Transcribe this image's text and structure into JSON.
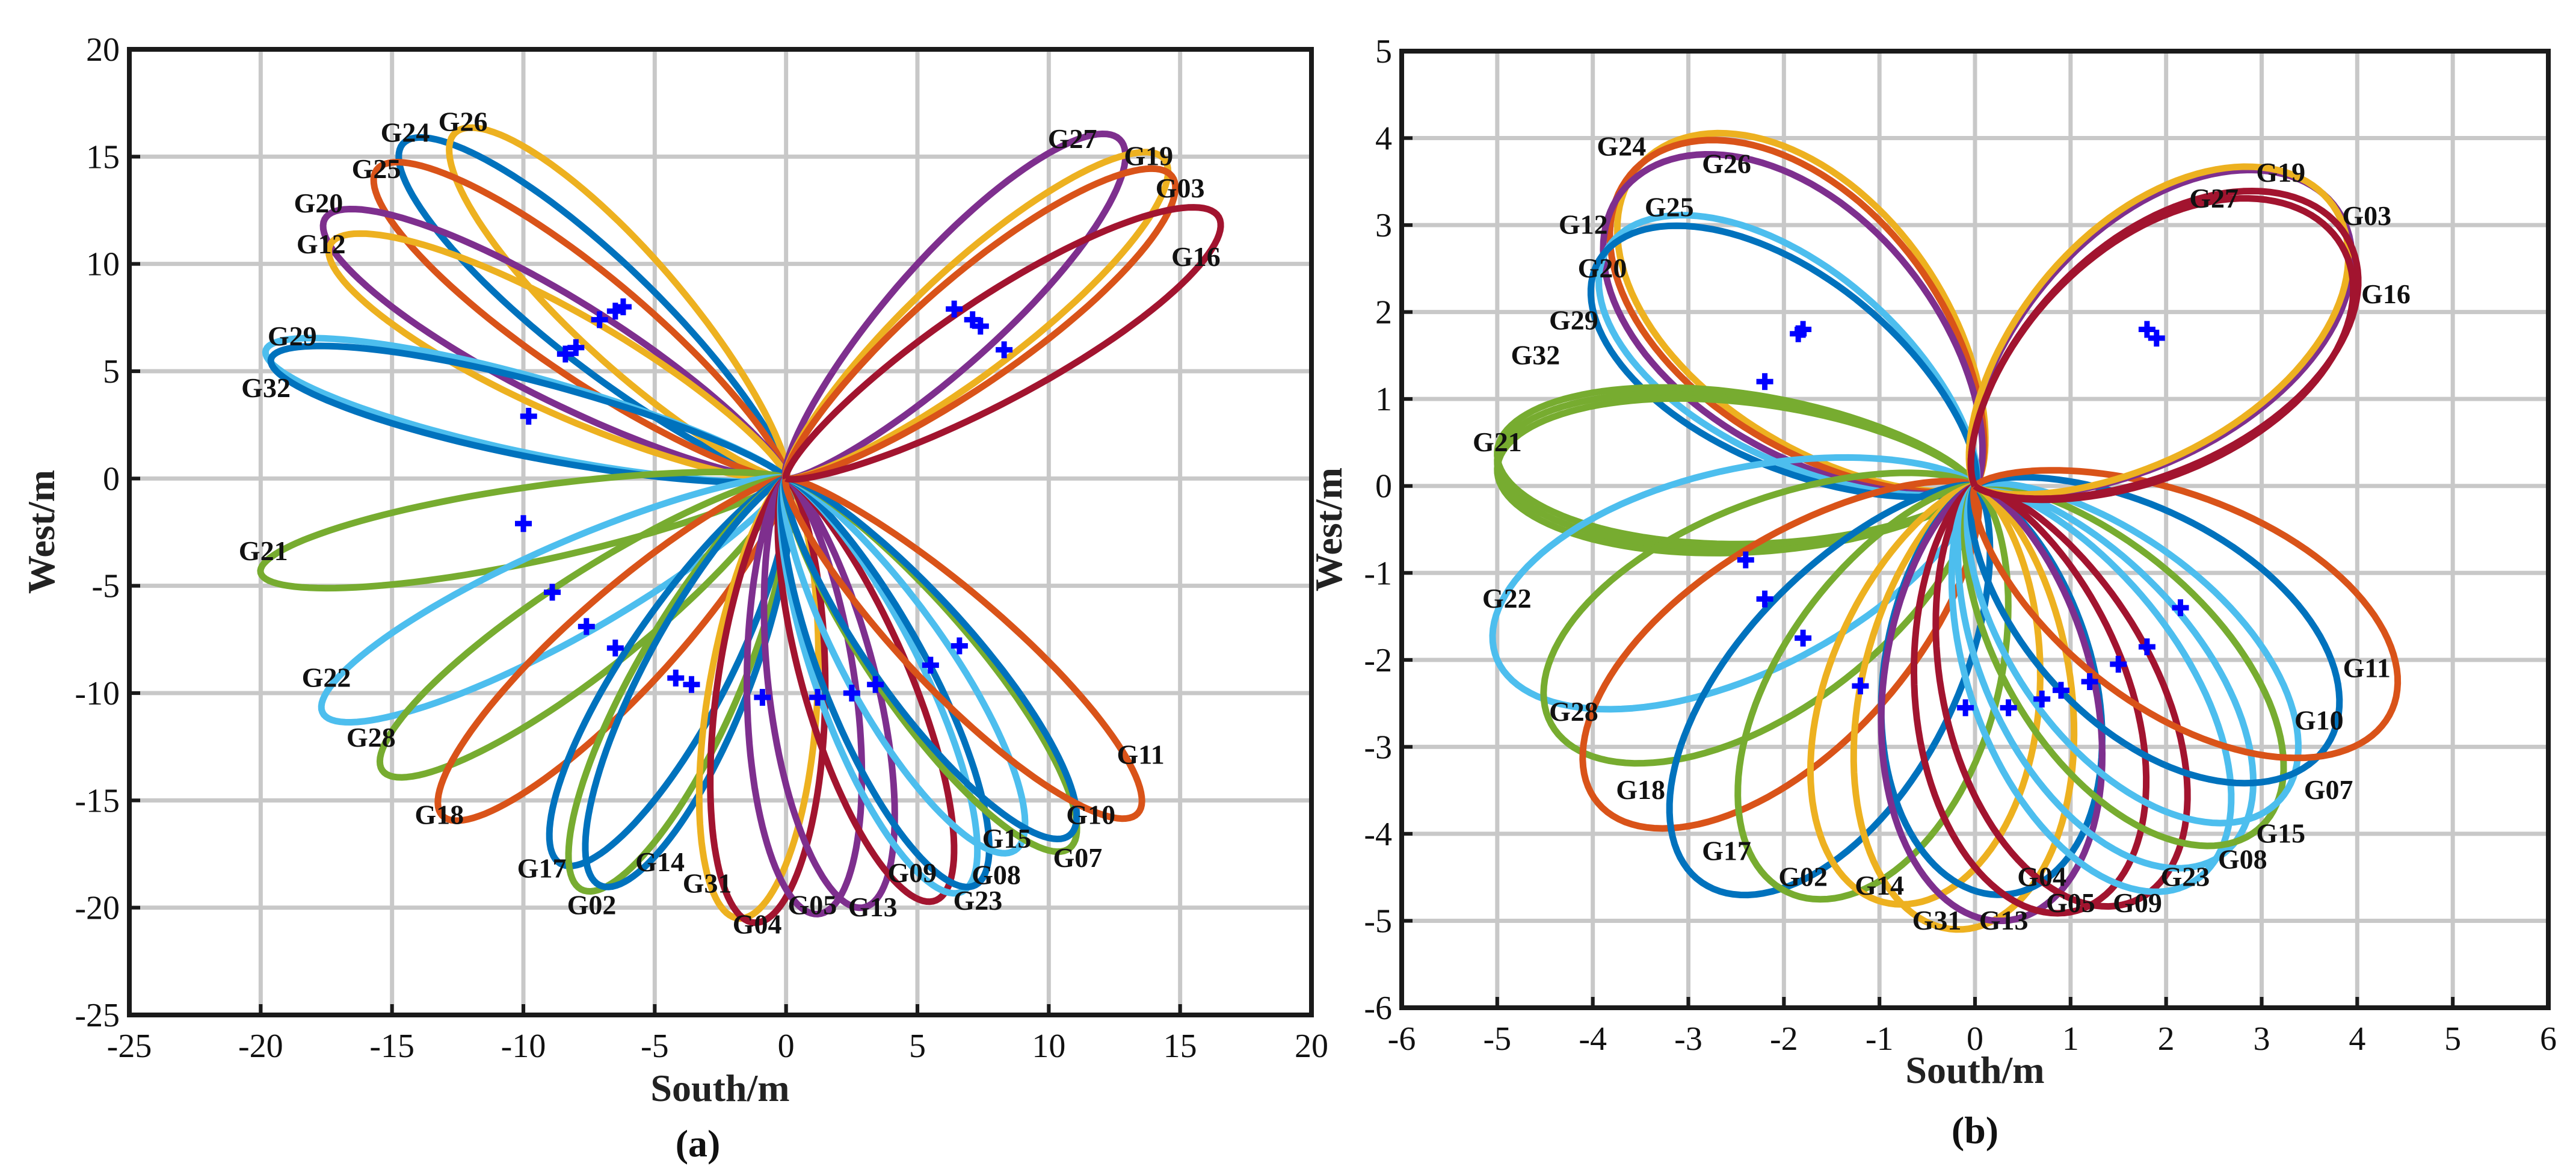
{
  "colors": {
    "C_blue": "#0072BD",
    "C_orange": "#D95319",
    "C_yellow": "#EDB120",
    "C_purple": "#7E2F8E",
    "C_green": "#77AC30",
    "C_cyan": "#4DBEEE",
    "C_red": "#A2142F",
    "marker": "#0000FF"
  },
  "chart_data": [
    {
      "type": "line",
      "subtitle": "(a)",
      "xlabel": "South/m",
      "ylabel": "West/m",
      "xlim": [
        -25,
        20
      ],
      "ylim": [
        -25,
        20
      ],
      "xticks": [
        -25,
        -20,
        -15,
        -10,
        -5,
        0,
        5,
        10,
        15,
        20
      ],
      "yticks": [
        -25,
        -20,
        -15,
        -10,
        -5,
        0,
        5,
        10,
        15,
        20
      ],
      "grid": true,
      "series": [
        {
          "name": "G24",
          "color": "C_blue",
          "tip": [
            -14.5,
            15.7
          ],
          "width": 2.6,
          "label": "G24",
          "label_at": [
            -14.5,
            15.7
          ]
        },
        {
          "name": "G26",
          "color": "C_yellow",
          "tip": [
            -12.5,
            16.2
          ],
          "width": 2.6,
          "label": "G26",
          "label_at": [
            -12.3,
            16.2
          ]
        },
        {
          "name": "G25",
          "color": "C_orange",
          "tip": [
            -15.5,
            14.5
          ],
          "width": 2.6,
          "label": "G25",
          "label_at": [
            -15.6,
            14.0
          ]
        },
        {
          "name": "G20",
          "color": "C_purple",
          "tip": [
            -17.5,
            12.2
          ],
          "width": 2.6,
          "label": "G20",
          "label_at": [
            -17.8,
            12.4
          ]
        },
        {
          "name": "G12",
          "color": "C_yellow",
          "tip": [
            -17.3,
            11.0
          ],
          "width": 2.6,
          "label": "G12",
          "label_at": [
            -17.7,
            10.5
          ]
        },
        {
          "name": "G29",
          "color": "C_cyan",
          "tip": [
            -19.8,
            6.0
          ],
          "width": 2.0,
          "label": "G29",
          "label_at": [
            -18.8,
            6.2
          ]
        },
        {
          "name": "G32",
          "color": "C_blue",
          "tip": [
            -19.6,
            5.6
          ],
          "width": 2.0,
          "label": "G32",
          "label_at": [
            -19.8,
            3.8
          ]
        },
        {
          "name": "G21",
          "color": "C_green",
          "tip": [
            -20.0,
            -4.4
          ],
          "width": 2.0,
          "label": "G21",
          "label_at": [
            -19.9,
            -3.8
          ]
        },
        {
          "name": "G22",
          "color": "C_cyan",
          "tip": [
            -17.6,
            -11.0
          ],
          "width": 2.4,
          "label": "G22",
          "label_at": [
            -17.5,
            -9.7
          ]
        },
        {
          "name": "G28",
          "color": "C_green",
          "tip": [
            -15.3,
            -13.7
          ],
          "width": 2.4,
          "label": "G28",
          "label_at": [
            -15.8,
            -12.5
          ]
        },
        {
          "name": "G18",
          "color": "C_orange",
          "tip": [
            -13.0,
            -15.8
          ],
          "width": 2.4,
          "label": "G18",
          "label_at": [
            -13.2,
            -16.1
          ]
        },
        {
          "name": "G17",
          "color": "C_blue",
          "tip": [
            -8.5,
            -18.0
          ],
          "width": 2.4,
          "label": "G17",
          "label_at": [
            -9.3,
            -18.6
          ]
        },
        {
          "name": "G02",
          "color": "C_green",
          "tip": [
            -7.7,
            -19.2
          ],
          "width": 2.4,
          "label": "G02",
          "label_at": [
            -7.4,
            -20.3
          ]
        },
        {
          "name": "G14",
          "color": "C_blue",
          "tip": [
            -7.0,
            -19.0
          ],
          "width": 2.4,
          "label": "G14",
          "label_at": [
            -4.8,
            -18.3
          ]
        },
        {
          "name": "G31",
          "color": "C_yellow",
          "tip": [
            -1.8,
            -20.5
          ],
          "width": 2.4,
          "label": "G31",
          "label_at": [
            -3.0,
            -19.3
          ]
        },
        {
          "name": "G04",
          "color": "C_red",
          "tip": [
            -1.2,
            -20.7
          ],
          "width": 2.4,
          "label": "G04",
          "label_at": [
            -1.1,
            -21.2
          ]
        },
        {
          "name": "G05",
          "color": "C_purple",
          "tip": [
            1.2,
            -20.3
          ],
          "width": 2.4,
          "label": "G05",
          "label_at": [
            1.0,
            -20.3
          ]
        },
        {
          "name": "G13",
          "color": "C_purple",
          "tip": [
            2.9,
            -20.0
          ],
          "width": 2.4,
          "label": "G13",
          "label_at": [
            3.3,
            -20.4
          ]
        },
        {
          "name": "G09",
          "color": "C_red",
          "tip": [
            5.6,
            -19.7
          ],
          "width": 2.4,
          "label": "G09",
          "label_at": [
            4.8,
            -18.8
          ]
        },
        {
          "name": "G23",
          "color": "C_cyan",
          "tip": [
            6.6,
            -19.3
          ],
          "width": 2.4,
          "label": "G23",
          "label_at": [
            7.3,
            -20.1
          ]
        },
        {
          "name": "G08",
          "color": "C_blue",
          "tip": [
            7.1,
            -19.0
          ],
          "width": 2.4,
          "label": "G08",
          "label_at": [
            8.0,
            -18.9
          ]
        },
        {
          "name": "G15",
          "color": "C_cyan",
          "tip": [
            8.6,
            -17.4
          ],
          "width": 2.4,
          "label": "G15",
          "label_at": [
            8.4,
            -17.2
          ]
        },
        {
          "name": "G07",
          "color": "C_green",
          "tip": [
            10.7,
            -17.3
          ],
          "width": 2.4,
          "label": "G07",
          "label_at": [
            11.1,
            -18.1
          ]
        },
        {
          "name": "G10",
          "color": "C_blue",
          "tip": [
            10.7,
            -16.7
          ],
          "width": 2.4,
          "label": "G10",
          "label_at": [
            11.6,
            -16.1
          ]
        },
        {
          "name": "G11",
          "color": "C_orange",
          "tip": [
            13.3,
            -15.7
          ],
          "width": 2.4,
          "label": "G11",
          "label_at": [
            13.5,
            -13.3
          ]
        },
        {
          "name": "G27",
          "color": "C_purple",
          "tip": [
            12.6,
            15.9
          ],
          "width": 2.6,
          "label": "G27",
          "label_at": [
            10.9,
            15.4
          ]
        },
        {
          "name": "G19",
          "color": "C_yellow",
          "tip": [
            14.3,
            15.0
          ],
          "width": 2.6,
          "label": "G19",
          "label_at": [
            13.8,
            14.6
          ]
        },
        {
          "name": "G03",
          "color": "C_orange",
          "tip": [
            14.6,
            14.2
          ],
          "width": 2.6,
          "label": "G03",
          "label_at": [
            15.0,
            13.1
          ]
        },
        {
          "name": "G16",
          "color": "C_red",
          "tip": [
            16.4,
            12.3
          ],
          "width": 2.6,
          "label": "G16",
          "label_at": [
            15.6,
            9.9
          ]
        }
      ],
      "markers": [
        [
          -9.8,
          2.9
        ],
        [
          -8.0,
          6.1
        ],
        [
          -8.4,
          5.8
        ],
        [
          -7.1,
          7.4
        ],
        [
          -6.5,
          7.8
        ],
        [
          -6.2,
          8.0
        ],
        [
          6.4,
          7.9
        ],
        [
          7.1,
          7.4
        ],
        [
          7.4,
          7.1
        ],
        [
          8.3,
          6.0
        ],
        [
          -10.0,
          -2.1
        ],
        [
          -8.9,
          -5.3
        ],
        [
          -7.6,
          -6.9
        ],
        [
          -6.5,
          -7.9
        ],
        [
          -4.2,
          -9.3
        ],
        [
          -3.6,
          -9.6
        ],
        [
          -0.9,
          -10.2
        ],
        [
          1.2,
          -10.2
        ],
        [
          2.5,
          -10.0
        ],
        [
          3.4,
          -9.6
        ],
        [
          5.5,
          -8.7
        ],
        [
          6.6,
          -7.8
        ]
      ]
    },
    {
      "type": "line",
      "subtitle": "(b)",
      "xlabel": "South/m",
      "ylabel": "West/m",
      "xlim": [
        -6,
        6
      ],
      "ylim": [
        -6,
        5
      ],
      "xticks": [
        -6,
        -5,
        -4,
        -3,
        -2,
        -1,
        0,
        1,
        2,
        3,
        4,
        5,
        6
      ],
      "yticks": [
        -6,
        -5,
        -4,
        -3,
        -2,
        -1,
        0,
        1,
        2,
        3,
        4,
        5
      ],
      "grid": true,
      "series": [
        {
          "name": "G24",
          "color": "C_yellow",
          "tip": [
            -3.4,
            3.8
          ],
          "width": 1.55,
          "label": "G24",
          "label_at": [
            -3.7,
            3.8
          ]
        },
        {
          "name": "G26",
          "color": "C_orange",
          "tip": [
            -3.5,
            3.7
          ],
          "width": 1.55,
          "label": "G26",
          "label_at": [
            -2.6,
            3.6
          ]
        },
        {
          "name": "G25",
          "color": "C_purple",
          "tip": [
            -3.6,
            3.5
          ],
          "width": 1.55,
          "label": "G25",
          "label_at": [
            -3.2,
            3.1
          ]
        },
        {
          "name": "G12",
          "color": "C_cyan",
          "tip": [
            -3.8,
            2.8
          ],
          "width": 1.25,
          "label": "G12",
          "label_at": [
            -4.1,
            2.9
          ]
        },
        {
          "name": "G20",
          "color": "C_blue",
          "tip": [
            -3.9,
            2.65
          ],
          "width": 1.25,
          "label": "G20",
          "label_at": [
            -3.9,
            2.4
          ]
        },
        {
          "name": "G29",
          "color": "C_green",
          "tip": [
            -5.0,
            0.3
          ],
          "width": 1.0,
          "label": "G29",
          "label_at": [
            -4.2,
            1.8
          ]
        },
        {
          "name": "G32",
          "color": "C_green",
          "tip": [
            -5.0,
            0.4
          ],
          "width": 1.0,
          "label": "G32",
          "label_at": [
            -4.6,
            1.4
          ]
        },
        {
          "name": "G21",
          "color": "C_green",
          "tip": [
            -5.0,
            0.2
          ],
          "width": 1.0,
          "label": "G21",
          "label_at": [
            -5.0,
            0.4
          ]
        },
        {
          "name": "G22",
          "color": "C_cyan",
          "tip": [
            -5.0,
            -2.0
          ],
          "width": 1.35,
          "label": "G22",
          "label_at": [
            -4.9,
            -1.4
          ]
        },
        {
          "name": "G28",
          "color": "C_green",
          "tip": [
            -4.4,
            -2.8
          ],
          "width": 1.35,
          "label": "G28",
          "label_at": [
            -4.2,
            -2.7
          ]
        },
        {
          "name": "G18",
          "color": "C_orange",
          "tip": [
            -3.9,
            -3.7
          ],
          "width": 1.35,
          "label": "G18",
          "label_at": [
            -3.5,
            -3.6
          ]
        },
        {
          "name": "G17",
          "color": "C_blue",
          "tip": [
            -2.8,
            -4.6
          ],
          "width": 1.35,
          "label": "G17",
          "label_at": [
            -2.6,
            -4.3
          ]
        },
        {
          "name": "G02",
          "color": "C_green",
          "tip": [
            -1.9,
            -4.7
          ],
          "width": 1.35,
          "label": "G02",
          "label_at": [
            -1.8,
            -4.6
          ]
        },
        {
          "name": "G14",
          "color": "C_yellow",
          "tip": [
            -0.9,
            -4.8
          ],
          "width": 1.3,
          "label": "G14",
          "label_at": [
            -1.0,
            -4.7
          ]
        },
        {
          "name": "G31",
          "color": "C_yellow",
          "tip": [
            -0.2,
            -5.1
          ],
          "width": 1.3,
          "label": "G31",
          "label_at": [
            -0.4,
            -5.1
          ]
        },
        {
          "name": "G04",
          "color": "C_blue",
          "tip": [
            0.3,
            -4.7
          ],
          "width": 1.3,
          "label": "G04",
          "label_at": [
            0.7,
            -4.6
          ]
        },
        {
          "name": "G13",
          "color": "C_purple",
          "tip": [
            0.3,
            -5.0
          ],
          "width": 1.3,
          "label": "G13",
          "label_at": [
            0.3,
            -5.1
          ]
        },
        {
          "name": "G05",
          "color": "C_red",
          "tip": [
            1.0,
            -4.9
          ],
          "width": 1.3,
          "label": "G05",
          "label_at": [
            1.0,
            -4.9
          ]
        },
        {
          "name": "G09",
          "color": "C_red",
          "tip": [
            1.6,
            -4.8
          ],
          "width": 1.3,
          "label": "G09",
          "label_at": [
            1.7,
            -4.9
          ]
        },
        {
          "name": "G23",
          "color": "C_cyan",
          "tip": [
            2.2,
            -4.6
          ],
          "width": 1.3,
          "label": "G23",
          "label_at": [
            2.2,
            -4.6
          ]
        },
        {
          "name": "G08",
          "color": "C_cyan",
          "tip": [
            2.5,
            -4.3
          ],
          "width": 1.3,
          "label": "G08",
          "label_at": [
            2.8,
            -4.4
          ]
        },
        {
          "name": "G15",
          "color": "C_green",
          "tip": [
            2.9,
            -4.0
          ],
          "width": 1.3,
          "label": "G15",
          "label_at": [
            3.2,
            -4.1
          ]
        },
        {
          "name": "G07",
          "color": "C_cyan",
          "tip": [
            3.1,
            -3.7
          ],
          "width": 1.3,
          "label": "G07",
          "label_at": [
            3.7,
            -3.6
          ]
        },
        {
          "name": "G10",
          "color": "C_blue",
          "tip": [
            3.6,
            -3.1
          ],
          "width": 1.4,
          "label": "G10",
          "label_at": [
            3.6,
            -2.8
          ]
        },
        {
          "name": "G11",
          "color": "C_orange",
          "tip": [
            4.3,
            -2.7
          ],
          "width": 1.4,
          "label": "G11",
          "label_at": [
            4.1,
            -2.2
          ]
        },
        {
          "name": "G19",
          "color": "C_purple",
          "tip": [
            3.7,
            3.3
          ],
          "width": 1.5,
          "label": "G19",
          "label_at": [
            3.2,
            3.5
          ]
        },
        {
          "name": "G27",
          "color": "C_yellow",
          "tip": [
            3.65,
            3.35
          ],
          "width": 1.5,
          "label": "G27",
          "label_at": [
            2.5,
            3.2
          ]
        },
        {
          "name": "G03",
          "color": "C_red",
          "tip": [
            3.8,
            3.0
          ],
          "width": 1.5,
          "label": "G03",
          "label_at": [
            4.1,
            3.0
          ]
        },
        {
          "name": "G16",
          "color": "C_red",
          "tip": [
            3.75,
            2.9
          ],
          "width": 1.5,
          "label": "G16",
          "label_at": [
            4.3,
            2.1
          ]
        }
      ],
      "markers": [
        [
          -2.2,
          1.2
        ],
        [
          -1.85,
          1.75
        ],
        [
          -1.8,
          1.8
        ],
        [
          1.8,
          1.8
        ],
        [
          1.9,
          1.7
        ],
        [
          -2.4,
          -0.85
        ],
        [
          -2.2,
          -1.3
        ],
        [
          -1.8,
          -1.75
        ],
        [
          -1.2,
          -2.3
        ],
        [
          -0.1,
          -2.55
        ],
        [
          0.35,
          -2.55
        ],
        [
          0.7,
          -2.45
        ],
        [
          0.9,
          -2.35
        ],
        [
          1.2,
          -2.25
        ],
        [
          1.5,
          -2.05
        ],
        [
          1.8,
          -1.85
        ],
        [
          2.15,
          -1.4
        ]
      ]
    }
  ]
}
